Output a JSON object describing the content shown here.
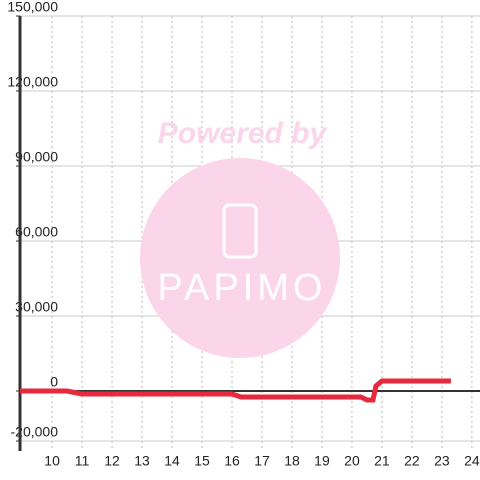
{
  "chart_data": {
    "type": "line",
    "x": [
      8.93,
      10.5,
      11,
      16,
      16.3,
      20.3,
      20.5,
      20.7,
      20.8,
      21,
      23.3
    ],
    "series": [
      {
        "color": "#e8283c",
        "values": [
          0,
          0,
          -1200,
          -1200,
          -2400,
          -2400,
          -3600,
          -3600,
          2000,
          4000,
          4000
        ]
      }
    ],
    "xlim": [
      8.93,
      24.27
    ],
    "xticks": [
      10,
      11,
      12,
      13,
      14,
      15,
      16,
      17,
      18,
      19,
      20,
      21,
      22,
      23,
      24
    ],
    "ylim": [
      -24000,
      150000
    ],
    "yticks": [
      {
        "value": -20000,
        "label": "-20,000"
      },
      {
        "value": 0,
        "label": "0"
      },
      {
        "value": 30000,
        "label": "30,000"
      },
      {
        "value": 60000,
        "label": "60,000"
      },
      {
        "value": 90000,
        "label": "90,000"
      },
      {
        "value": 120000,
        "label": "120,000"
      },
      {
        "value": 150000,
        "label": "150,000"
      }
    ],
    "grid": true,
    "watermark": {
      "line1": "Powered by",
      "line2": "PAPIMO"
    }
  }
}
